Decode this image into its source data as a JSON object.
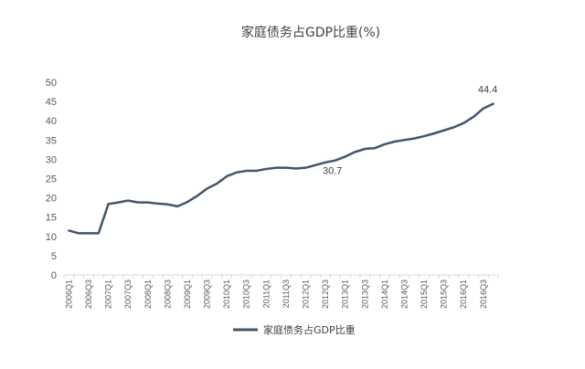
{
  "chart_data": {
    "type": "line",
    "title": "家庭债务占GDP比重(%)",
    "xlabel": "",
    "ylabel": "",
    "ylim": [
      0,
      50
    ],
    "yticks": [
      0,
      5,
      10,
      15,
      20,
      25,
      30,
      35,
      40,
      45,
      50
    ],
    "grid": false,
    "legend_position": "bottom",
    "line_color": "#44546a",
    "x": [
      "2006Q1",
      "2006Q2",
      "2006Q3",
      "2006Q4",
      "2007Q1",
      "2007Q2",
      "2007Q3",
      "2007Q4",
      "2008Q1",
      "2008Q2",
      "2008Q3",
      "2008Q4",
      "2009Q1",
      "2009Q2",
      "2009Q3",
      "2009Q4",
      "2010Q1",
      "2010Q2",
      "2010Q3",
      "2010Q4",
      "2011Q1",
      "2011Q2",
      "2011Q3",
      "2011Q4",
      "2012Q1",
      "2012Q2",
      "2012Q3",
      "2012Q4",
      "2013Q1",
      "2013Q2",
      "2013Q3",
      "2013Q4",
      "2014Q1",
      "2014Q2",
      "2014Q3",
      "2014Q4",
      "2015Q1",
      "2015Q2",
      "2015Q3",
      "2015Q4",
      "2016Q1",
      "2016Q2",
      "2016Q3",
      "2016Q4"
    ],
    "x_tick_labels": [
      "2006Q1",
      "",
      "2006Q3",
      "",
      "2007Q1",
      "",
      "2007Q3",
      "",
      "2008Q1",
      "",
      "2008Q3",
      "",
      "2009Q1",
      "",
      "2009Q3",
      "",
      "2010Q1",
      "",
      "2010Q3",
      "",
      "2011Q1",
      "",
      "2011Q3",
      "",
      "2012Q1",
      "",
      "2012Q3",
      "",
      "2013Q1",
      "",
      "2013Q3",
      "",
      "2014Q1",
      "",
      "2014Q3",
      "",
      "2015Q1",
      "",
      "2015Q3",
      "",
      "2016Q1",
      "",
      "2016Q3",
      ""
    ],
    "series": [
      {
        "name": "家庭债务占GDP比重",
        "values": [
          11.5,
          10.8,
          10.8,
          10.8,
          18.4,
          18.8,
          19.3,
          18.8,
          18.8,
          18.5,
          18.3,
          17.8,
          18.9,
          20.5,
          22.4,
          23.7,
          25.6,
          26.6,
          27.0,
          27.0,
          27.5,
          27.8,
          27.8,
          27.6,
          27.8,
          28.5,
          29.2,
          29.7,
          30.7,
          31.9,
          32.7,
          32.9,
          33.9,
          34.6,
          35.0,
          35.4,
          36.0,
          36.7,
          37.5,
          38.3,
          39.4,
          41.0,
          43.2,
          44.4
        ]
      }
    ],
    "annotations": [
      {
        "text": "30.7",
        "x": "2013Q1",
        "y": 30.7,
        "placement": "below"
      },
      {
        "text": "44.4",
        "x": "2016Q4",
        "y": 44.4,
        "placement": "above"
      }
    ]
  }
}
